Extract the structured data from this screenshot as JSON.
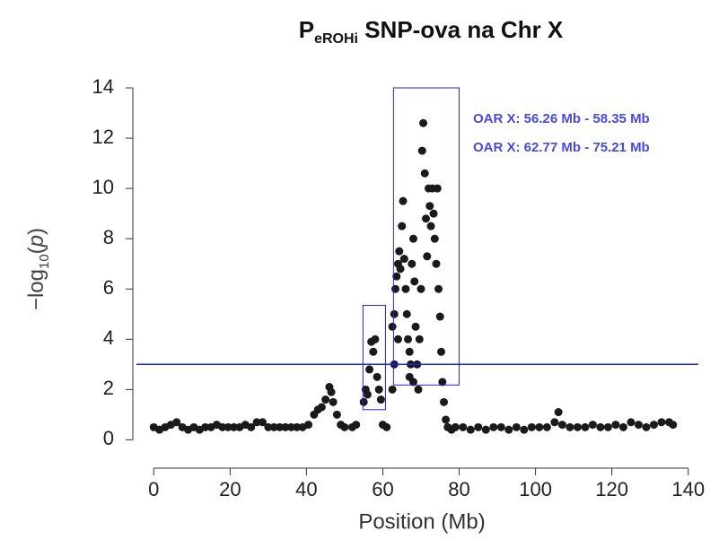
{
  "chart_data": {
    "type": "scatter",
    "title": "P",
    "title_subscript": "eROHi",
    "title_rest": " SNP-ova na Chr X",
    "x_label": "Position (Mb)",
    "y_label": "−log",
    "y_label_subscript": "10",
    "y_label_open": "(",
    "y_label_var": "p",
    "y_label_close": ")",
    "color": "#1a1a1a",
    "xlim": [
      -5,
      145
    ],
    "ylim": [
      -0.7,
      14.5
    ],
    "xticks": [
      0,
      20,
      40,
      60,
      80,
      100,
      120,
      140
    ],
    "yticks": [
      0,
      2,
      4,
      6,
      8,
      10,
      12,
      14
    ],
    "threshold": 3,
    "threshold_color": "#2222dd",
    "boxes": [
      {
        "x": [
          54.8,
          60.7
        ],
        "y": [
          1.2,
          5.35
        ]
      },
      {
        "x": [
          62.8,
          80
        ],
        "y": [
          2.18,
          14
        ]
      }
    ],
    "annotations": [
      "OAR X: 56.26 Mb - 58.35 Mb",
      "OAR X: 62.77 Mb - 75.21 Mb"
    ],
    "annotation_color": "#4a4adb",
    "x": [
      0,
      1.5,
      3,
      4.5,
      6,
      7.5,
      9,
      10.5,
      12,
      13.5,
      15,
      16.5,
      18,
      19.5,
      21,
      22.5,
      24,
      25.5,
      27,
      28.5,
      30,
      31.5,
      33,
      34.5,
      36,
      37.5,
      39,
      40.5,
      42,
      43,
      44,
      45,
      46,
      46.5,
      47,
      48,
      49,
      50,
      52,
      53,
      55,
      55.5,
      56,
      56.5,
      57,
      57.5,
      58,
      58.5,
      59,
      59.5,
      60,
      61,
      62.5,
      63,
      63.3,
      63.6,
      64,
      64.3,
      64.6,
      65,
      65.3,
      65.6,
      66,
      66.3,
      66.6,
      67,
      67.3,
      67.6,
      68,
      68.3,
      68.6,
      69,
      69.3,
      69.6,
      70,
      70.3,
      70.6,
      71,
      71.3,
      71.6,
      72,
      72.3,
      72.6,
      73,
      73.3,
      73.6,
      74,
      74.3,
      74.6,
      75,
      75.3,
      75.6,
      76,
      76.5,
      77,
      78,
      62.5,
      63,
      64,
      67,
      68,
      79,
      81,
      83,
      85,
      87,
      89,
      91,
      93,
      95,
      97,
      99,
      101,
      103,
      105,
      106,
      107,
      109,
      111,
      113,
      115,
      117,
      119,
      121,
      123,
      125,
      127,
      129,
      131,
      133,
      135,
      136
    ],
    "values": [
      0.5,
      0.4,
      0.5,
      0.6,
      0.7,
      0.5,
      0.4,
      0.5,
      0.4,
      0.5,
      0.5,
      0.6,
      0.5,
      0.5,
      0.5,
      0.5,
      0.6,
      0.5,
      0.7,
      0.7,
      0.5,
      0.5,
      0.5,
      0.5,
      0.5,
      0.5,
      0.5,
      0.6,
      1.0,
      1.2,
      1.3,
      1.6,
      2.1,
      1.9,
      1.5,
      1.0,
      0.6,
      0.5,
      0.5,
      0.6,
      1.5,
      2.0,
      1.8,
      2.8,
      3.9,
      3.5,
      4.0,
      2.5,
      2.0,
      1.6,
      0.6,
      0.5,
      4.5,
      5.0,
      6.0,
      6.5,
      7.0,
      7.5,
      6.8,
      8.5,
      9.5,
      7.2,
      6.0,
      5.0,
      4.0,
      3.5,
      3.0,
      7.0,
      8.0,
      6.3,
      4.5,
      3.0,
      2.0,
      4.0,
      6.0,
      11.5,
      12.6,
      10.6,
      8.8,
      7.3,
      10.0,
      9.3,
      8.5,
      10.0,
      9.0,
      8.0,
      7.0,
      10.0,
      6.0,
      4.9,
      3.5,
      2.3,
      1.5,
      0.8,
      0.5,
      0.4,
      2.0,
      3.0,
      4.0,
      2.5,
      2.3,
      0.5,
      0.5,
      0.4,
      0.5,
      0.4,
      0.5,
      0.5,
      0.4,
      0.5,
      0.4,
      0.5,
      0.5,
      0.5,
      0.7,
      1.1,
      0.6,
      0.5,
      0.5,
      0.5,
      0.6,
      0.5,
      0.5,
      0.6,
      0.5,
      0.7,
      0.6,
      0.5,
      0.6,
      0.7,
      0.7,
      0.6
    ]
  }
}
